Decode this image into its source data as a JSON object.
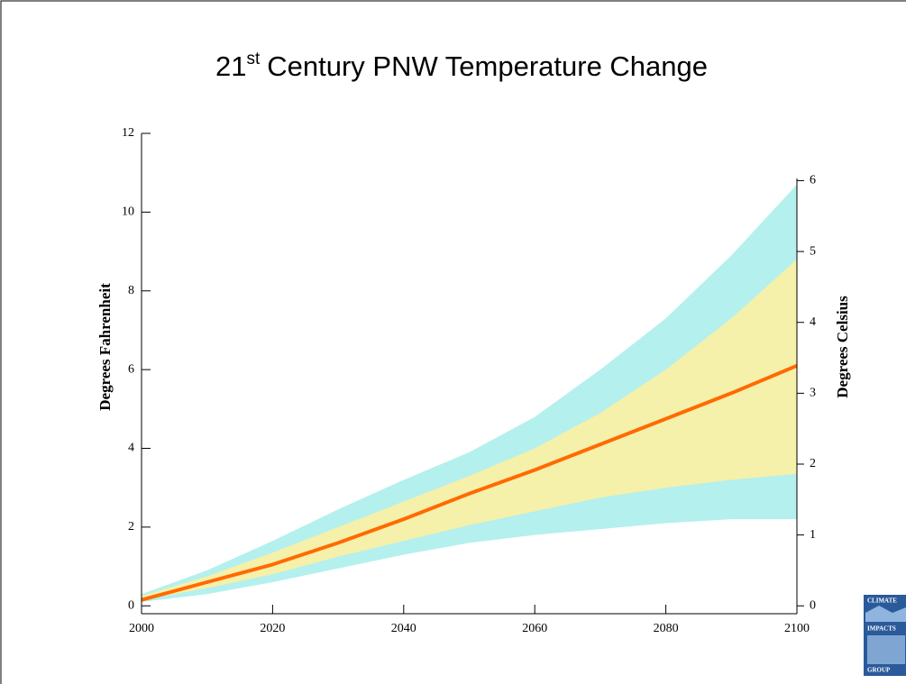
{
  "chart_data": {
    "type": "band-line",
    "title": [
      "21",
      "st",
      "Century PNW Temperature Change"
    ],
    "ylabel": "Degrees Fahrenheit",
    "y2label": "Degrees  Celsius",
    "x": [
      2000,
      2010,
      2020,
      2030,
      2040,
      2050,
      2060,
      2070,
      2080,
      2090,
      2100
    ],
    "bands": [
      {
        "color": "#b4f0ee",
        "lower": [
          0.1,
          0.3,
          0.6,
          0.95,
          1.3,
          1.6,
          1.8,
          1.95,
          2.1,
          2.2,
          2.2
        ],
        "upper": [
          0.3,
          0.9,
          1.65,
          2.45,
          3.2,
          3.9,
          4.8,
          6.0,
          7.3,
          8.9,
          10.7
        ]
      },
      {
        "color": "#f5f0aa",
        "lower": [
          0.15,
          0.45,
          0.8,
          1.25,
          1.65,
          2.05,
          2.4,
          2.75,
          3.0,
          3.2,
          3.35
        ],
        "upper": [
          0.25,
          0.75,
          1.35,
          2.0,
          2.65,
          3.3,
          4.0,
          4.9,
          6.0,
          7.3,
          8.8
        ]
      }
    ],
    "series": [
      {
        "color": "#ff6a00",
        "values": [
          0.15,
          0.6,
          1.05,
          1.6,
          2.2,
          2.85,
          3.45,
          4.1,
          4.75,
          5.4,
          6.1
        ]
      }
    ],
    "xlim": [
      2000,
      2100
    ],
    "xticks": [
      2000,
      2020,
      2040,
      2060,
      2080,
      2100
    ],
    "ylim": [
      -0.2,
      12
    ],
    "yticks": [
      0,
      2,
      4,
      6,
      8,
      10,
      12
    ],
    "y2lim": [
      -0.111,
      6.667
    ],
    "y2ticks": [
      0,
      1,
      2,
      3,
      4,
      5,
      6
    ]
  },
  "logo": [
    "CLIMATE",
    "IMPACTS",
    "GROUP"
  ]
}
